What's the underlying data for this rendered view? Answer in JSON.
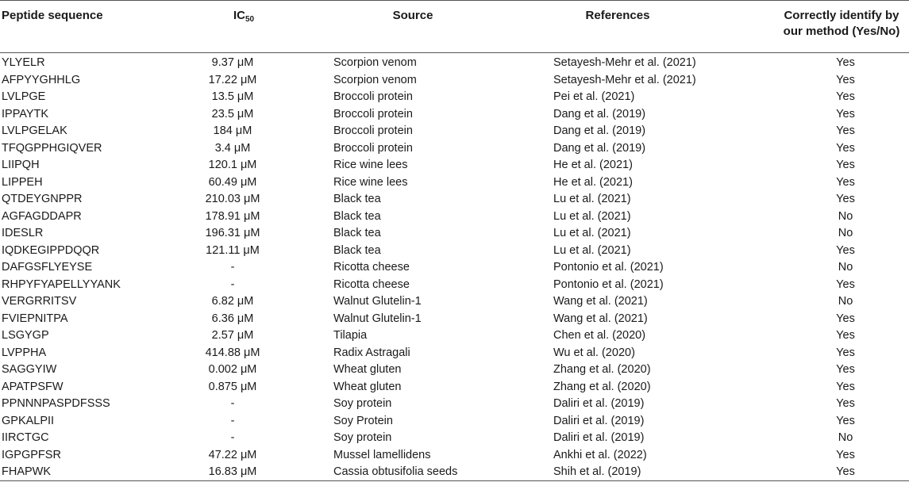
{
  "header": {
    "sequence": "Peptide sequence",
    "ic50_main": "IC",
    "ic50_sub": "50",
    "source": "Source",
    "references": "References",
    "correct_line1": "Correctly identify by",
    "correct_line2": "our method (Yes/No)"
  },
  "rows": [
    {
      "seq": "YLYELR",
      "ic50": "9.37 μM",
      "source": "Scorpion venom",
      "ref": "Setayesh-Mehr et al. (2021)",
      "ok": "Yes"
    },
    {
      "seq": "AFPYYGHHLG",
      "ic50": "17.22 μM",
      "source": "Scorpion venom",
      "ref": "Setayesh-Mehr et al. (2021)",
      "ok": "Yes"
    },
    {
      "seq": "LVLPGE",
      "ic50": "13.5 μM",
      "source": "Broccoli protein",
      "ref": "Pei et al. (2021)",
      "ok": "Yes"
    },
    {
      "seq": "IPPAYTK",
      "ic50": "23.5 μM",
      "source": "Broccoli protein",
      "ref": "Dang et al. (2019)",
      "ok": "Yes"
    },
    {
      "seq": "LVLPGELAK",
      "ic50": "184 μM",
      "source": "Broccoli protein",
      "ref": "Dang et al. (2019)",
      "ok": "Yes"
    },
    {
      "seq": "TFQGPPHGIQVER",
      "ic50": "3.4 μM",
      "source": "Broccoli protein",
      "ref": "Dang et al. (2019)",
      "ok": "Yes"
    },
    {
      "seq": "LIIPQH",
      "ic50": "120.1 μM",
      "source": "Rice wine lees",
      "ref": "He et al. (2021)",
      "ok": "Yes"
    },
    {
      "seq": "LIPPEH",
      "ic50": "60.49 μM",
      "source": "Rice wine lees",
      "ref": "He et al. (2021)",
      "ok": "Yes"
    },
    {
      "seq": "QTDEYGNPPR",
      "ic50": "210.03 μM",
      "source": "Black tea",
      "ref": "Lu et al. (2021)",
      "ok": "Yes"
    },
    {
      "seq": "AGFAGDDAPR",
      "ic50": "178.91 μM",
      "source": "Black tea",
      "ref": "Lu et al. (2021)",
      "ok": "No"
    },
    {
      "seq": "IDESLR",
      "ic50": "196.31 μM",
      "source": "Black tea",
      "ref": "Lu et al. (2021)",
      "ok": "No"
    },
    {
      "seq": "IQDKEGIPPDQQR",
      "ic50": "121.11 μM",
      "source": "Black tea",
      "ref": "Lu et al. (2021)",
      "ok": "Yes"
    },
    {
      "seq": "DAFGSFLYEYSE",
      "ic50": "-",
      "source": "Ricotta cheese",
      "ref": "Pontonio et al. (2021)",
      "ok": "No"
    },
    {
      "seq": "RHPYFYAPELLYYANK",
      "ic50": "-",
      "source": "Ricotta cheese",
      "ref": "Pontonio et al. (2021)",
      "ok": "Yes"
    },
    {
      "seq": "VERGRRITSV",
      "ic50": "6.82 μM",
      "source": "Walnut Glutelin-1",
      "ref": "Wang et al. (2021)",
      "ok": "No"
    },
    {
      "seq": "FVIEPNITPA",
      "ic50": "6.36 μM",
      "source": "Walnut Glutelin-1",
      "ref": "Wang et al. (2021)",
      "ok": "Yes"
    },
    {
      "seq": "LSGYGP",
      "ic50": "2.57 μM",
      "source": "Tilapia",
      "ref": "Chen et al. (2020)",
      "ok": "Yes"
    },
    {
      "seq": "LVPPHA",
      "ic50": "414.88 μM",
      "source": "Radix Astragali",
      "ref": "Wu et al. (2020)",
      "ok": "Yes"
    },
    {
      "seq": "SAGGYIW",
      "ic50": "0.002 μM",
      "source": "Wheat gluten",
      "ref": "Zhang et al. (2020)",
      "ok": "Yes"
    },
    {
      "seq": "APATPSFW",
      "ic50": "0.875 μM",
      "source": "Wheat gluten",
      "ref": "Zhang et al. (2020)",
      "ok": "Yes"
    },
    {
      "seq": "PPNNNPASPDFSSS",
      "ic50": "-",
      "source": "Soy protein",
      "ref": "Daliri et al. (2019)",
      "ok": "Yes"
    },
    {
      "seq": "GPKALPII",
      "ic50": "-",
      "source": "Soy Protein",
      "ref": "Daliri et al. (2019)",
      "ok": "Yes"
    },
    {
      "seq": "IIRCTGC",
      "ic50": "-",
      "source": "Soy protein",
      "ref": "Daliri et al. (2019)",
      "ok": "No"
    },
    {
      "seq": "IGPGPFSR",
      "ic50": "47.22 μM",
      "source": "Mussel lamellidens",
      "ref": "Ankhi et al. (2022)",
      "ok": "Yes"
    },
    {
      "seq": "FHAPWK",
      "ic50": "16.83 μM",
      "source": "Cassia obtusifolia seeds",
      "ref": "Shih et al. (2019)",
      "ok": "Yes"
    }
  ]
}
